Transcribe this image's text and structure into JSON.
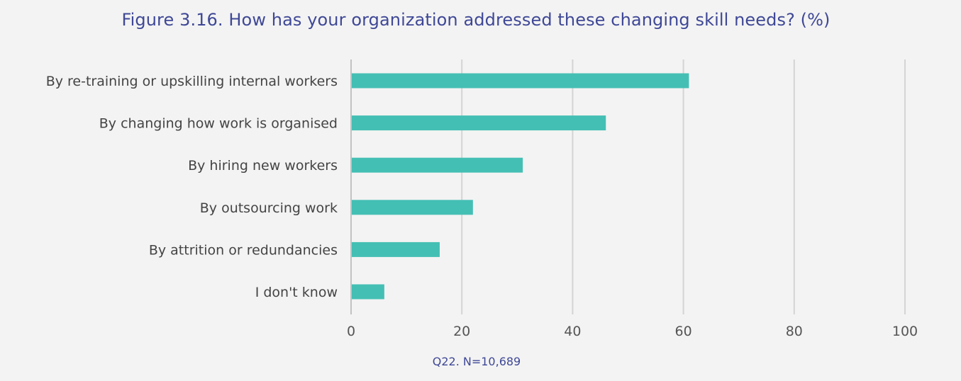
{
  "chart_data": {
    "type": "bar",
    "orientation": "horizontal",
    "title": "Figure 3.16. How has your organization addressed these changing skill needs? (%)",
    "categories": [
      "By re-training or upskilling internal workers",
      "By changing how work is organised",
      "By hiring new workers",
      "By outsourcing work",
      "By attrition or redundancies",
      "I don't know"
    ],
    "values": [
      61,
      46,
      31,
      22,
      16,
      6
    ],
    "xlim": [
      0,
      100
    ],
    "xticks": [
      "0",
      "20",
      "40",
      "60",
      "80",
      "100"
    ],
    "grid": true,
    "bar_color": "#44bfb4",
    "note": "Q22. N=10,689"
  }
}
